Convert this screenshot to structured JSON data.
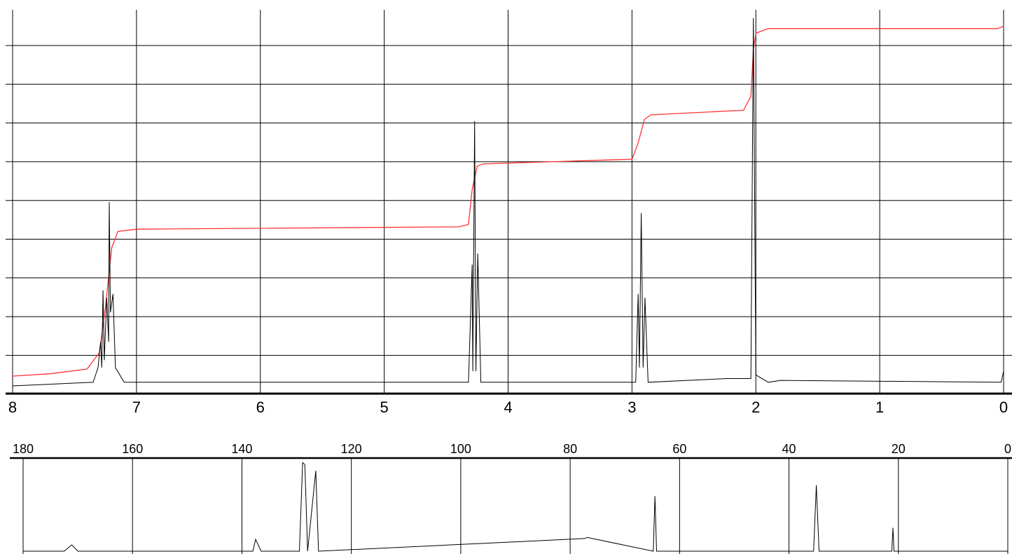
{
  "chart_data": [
    {
      "type": "line",
      "series": [
        {
          "values": [
            [
              8.0,
              0.0
            ],
            [
              7.35,
              0.01
            ],
            [
              7.31,
              0.05
            ],
            [
              7.29,
              0.12
            ],
            [
              7.28,
              0.05
            ],
            [
              7.27,
              0.26
            ],
            [
              7.26,
              0.07
            ],
            [
              7.24,
              0.24
            ],
            [
              7.225,
              0.12
            ],
            [
              7.22,
              0.5
            ],
            [
              7.21,
              0.2
            ],
            [
              7.19,
              0.25
            ],
            [
              7.17,
              0.05
            ],
            [
              7.1,
              0.01
            ],
            [
              4.32,
              0.01
            ],
            [
              4.29,
              0.33
            ],
            [
              4.285,
              0.04
            ],
            [
              4.27,
              0.72
            ],
            [
              4.26,
              0.04
            ],
            [
              4.245,
              0.36
            ],
            [
              4.22,
              0.01
            ],
            [
              2.97,
              0.01
            ],
            [
              2.95,
              0.25
            ],
            [
              2.94,
              0.05
            ],
            [
              2.925,
              0.47
            ],
            [
              2.91,
              0.05
            ],
            [
              2.895,
              0.24
            ],
            [
              2.87,
              0.01
            ],
            [
              2.23,
              0.02
            ],
            [
              2.04,
              0.02
            ],
            [
              2.02,
              1.0
            ],
            [
              2.0,
              0.03
            ],
            [
              1.9,
              0.01
            ],
            [
              1.8,
              0.015
            ],
            [
              0.02,
              0.01
            ],
            [
              0.0,
              0.04
            ]
          ]
        },
        {
          "values": [
            [
              8.0,
              0.0
            ],
            [
              7.7,
              0.01
            ],
            [
              7.4,
              0.03
            ],
            [
              7.3,
              0.1
            ],
            [
              7.25,
              0.3
            ],
            [
              7.2,
              0.55
            ],
            [
              7.15,
              0.62
            ],
            [
              7.0,
              0.63
            ],
            [
              4.4,
              0.64
            ],
            [
              4.32,
              0.65
            ],
            [
              4.29,
              0.8
            ],
            [
              4.25,
              0.9
            ],
            [
              4.2,
              0.91
            ],
            [
              3.0,
              0.93
            ],
            [
              2.95,
              1.0
            ],
            [
              2.9,
              1.1
            ],
            [
              2.85,
              1.12
            ],
            [
              2.1,
              1.14
            ],
            [
              2.04,
              1.2
            ],
            [
              2.02,
              1.4
            ],
            [
              2.0,
              1.47
            ],
            [
              1.9,
              1.49
            ],
            [
              0.05,
              1.49
            ],
            [
              0.0,
              1.5
            ]
          ]
        }
      ],
      "x_ticks": [
        "8",
        "7",
        "6",
        "5",
        "4",
        "3",
        "2",
        "1",
        "0"
      ],
      "xlim": [
        8,
        0
      ],
      "grid": true,
      "colors": {
        "spectrum": "#000000",
        "integral": "#ff3333"
      }
    },
    {
      "type": "line",
      "series": [
        {
          "values": [
            [
              180,
              0.0
            ],
            [
              172.5,
              0.0
            ],
            [
              171.1,
              0.07
            ],
            [
              170.0,
              0.0
            ],
            [
              138,
              0.0
            ],
            [
              137.5,
              0.13
            ],
            [
              136.5,
              0.0
            ],
            [
              129.5,
              0.0
            ],
            [
              128.9,
              0.98
            ],
            [
              128.5,
              0.96
            ],
            [
              128.0,
              0.0
            ],
            [
              126.5,
              0.89
            ],
            [
              126.0,
              0.0
            ],
            [
              77.3,
              0.14
            ],
            [
              77.0,
              0.15
            ],
            [
              76.7,
              0.15
            ],
            [
              64.8,
              0.0
            ],
            [
              64.5,
              0.61
            ],
            [
              64.2,
              0.0
            ],
            [
              35.5,
              0.0
            ],
            [
              35.0,
              0.73
            ],
            [
              34.5,
              0.0
            ],
            [
              21.2,
              0.0
            ],
            [
              21.0,
              0.26
            ],
            [
              20.8,
              0.0
            ],
            [
              0,
              0.0
            ]
          ]
        }
      ],
      "x_ticks": [
        "180",
        "160",
        "140",
        "120",
        "100",
        "80",
        "60",
        "40",
        "20",
        "0"
      ],
      "xlim": [
        180,
        0
      ],
      "grid": true,
      "colors": {
        "spectrum": "#000000"
      }
    }
  ]
}
